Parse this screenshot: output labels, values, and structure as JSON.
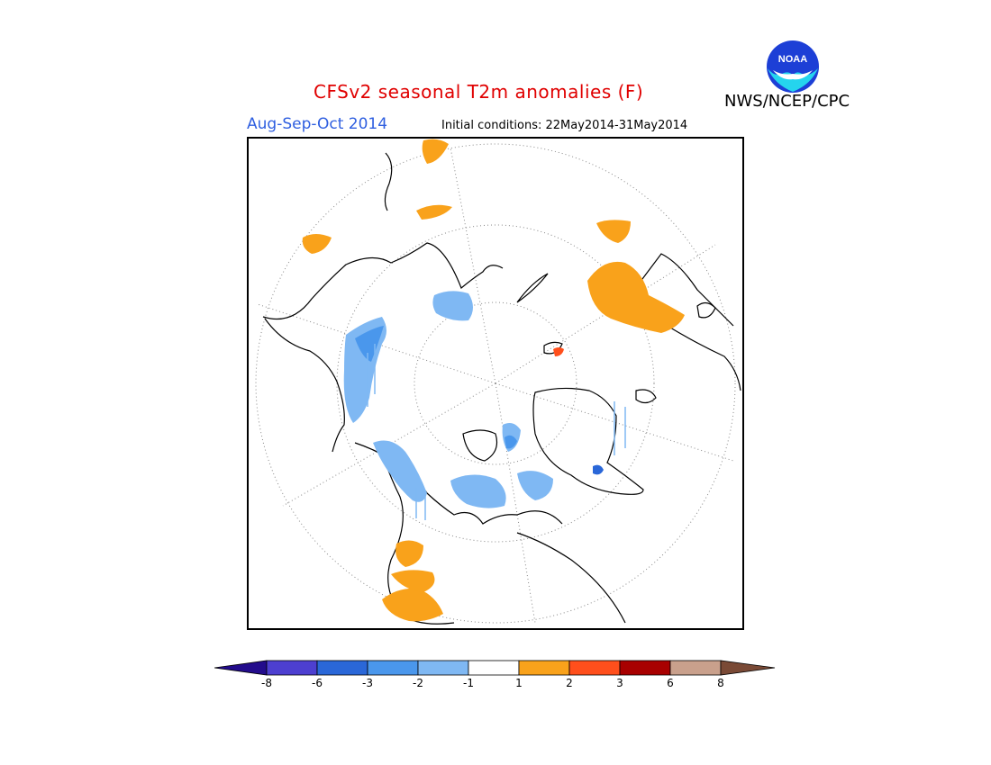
{
  "header": {
    "title": "CFSv2 seasonal T2m anomalies (F)",
    "season": "Aug-Sep-Oct 2014",
    "initial_conditions": "Initial conditions: 22May2014-31May2014",
    "agency": "NWS/NCEP/CPC",
    "logo_text": "NOAA"
  },
  "colors": {
    "title": "#e00000",
    "season": "#2f5fe0",
    "warm_1_2": "#f9a21b",
    "warm_2_3": "#ff4f1c",
    "warm_3_6": "#a80000",
    "warm_6_8": "#c9a08c",
    "warm_gt8": "#7a4a36",
    "cool_m1_m2": "#7fb8f3",
    "cool_m2_m3": "#4a97ec",
    "cool_m3_m6": "#2a67d8",
    "cool_m6_m8": "#4d3fd0",
    "cool_lt_m8": "#230c8c",
    "neutral": "#ffffff"
  },
  "colorbar": {
    "tick_labels": [
      "-8",
      "-6",
      "-3",
      "-2",
      "-1",
      "1",
      "2",
      "3",
      "6",
      "8"
    ],
    "bins": [
      {
        "color": "#4d3fd0"
      },
      {
        "color": "#2a67d8"
      },
      {
        "color": "#4a97ec"
      },
      {
        "color": "#7fb8f3"
      },
      {
        "color": "#ffffff"
      },
      {
        "color": "#f9a21b"
      },
      {
        "color": "#ff4f1c"
      },
      {
        "color": "#a80000"
      },
      {
        "color": "#c9a08c"
      }
    ],
    "left_arrow_color": "#230c8c",
    "right_arrow_color": "#7a4a36"
  },
  "map": {
    "projection": "north polar stereographic",
    "grid": "dotted",
    "anomaly_regions": [
      {
        "region": "northern Europe / Scandinavia",
        "sign": "warm"
      },
      {
        "region": "Iceland area",
        "sign": "warm"
      },
      {
        "region": "Mediterranean / southern Europe",
        "sign": "warm"
      },
      {
        "region": "northern Africa",
        "sign": "warm"
      },
      {
        "region": "Svalbard",
        "sign": "warm"
      },
      {
        "region": "Canadian Arctic Archipelago",
        "sign": "cool"
      },
      {
        "region": "eastern Siberia / Alaska coast",
        "sign": "cool"
      },
      {
        "region": "Greenland",
        "sign": "cool"
      },
      {
        "region": "central Siberia",
        "sign": "cool"
      }
    ]
  }
}
